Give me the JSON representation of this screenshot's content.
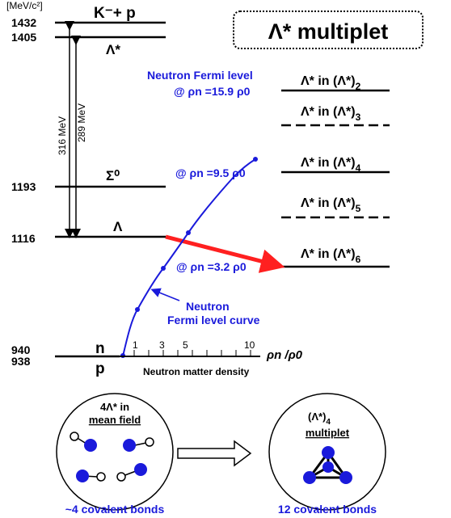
{
  "unit_label": "[MeV/c²]",
  "energy_ticks": [
    "1432",
    "1405",
    "1193",
    "1116",
    "940",
    "938"
  ],
  "levels": {
    "kp": "K⁻+ p",
    "lambda_star": "Λ*",
    "sigma0": "Σ⁰",
    "lambda": "Λ",
    "n": "n",
    "p": "p"
  },
  "gaps": [
    "316 MeV",
    "289 MeV"
  ],
  "title": "Λ* multiplet",
  "multiplet_states": [
    {
      "base": "Λ* in (Λ*)",
      "sub": "2",
      "dashed": false
    },
    {
      "base": "Λ* in (Λ*)",
      "sub": "3",
      "dashed": true
    },
    {
      "base": "Λ* in (Λ*)",
      "sub": "4",
      "dashed": false
    },
    {
      "base": "Λ* in (Λ*)",
      "sub": "5",
      "dashed": true
    },
    {
      "base": "Λ* in (Λ*)",
      "sub": "6",
      "dashed": false
    }
  ],
  "fermi_annotations": {
    "top_line1": "Neutron Fermi level",
    "top_line2": "@ ρn =15.9 ρ0",
    "mid": "@ ρn =9.5 ρ0",
    "low": "@ ρn =3.2 ρ0",
    "curve_line1": "Neutron",
    "curve_line2": "Fermi level curve"
  },
  "density_axis": {
    "ticks": [
      "1",
      "3",
      "5",
      "10"
    ],
    "label": "ρn /ρ0",
    "caption": "Neutron matter density"
  },
  "bottom": {
    "left_title1": "4Λ* in",
    "left_title2": "mean field",
    "left_caption": "~4 covalent bonds",
    "right_title1": "(Λ*)",
    "right_title_sub": "4",
    "right_title2": "multiplet",
    "right_caption": "12 covalent bonds"
  },
  "colors": {
    "blue": "#1a1adb",
    "red": "#ff2020",
    "black": "#000000"
  }
}
